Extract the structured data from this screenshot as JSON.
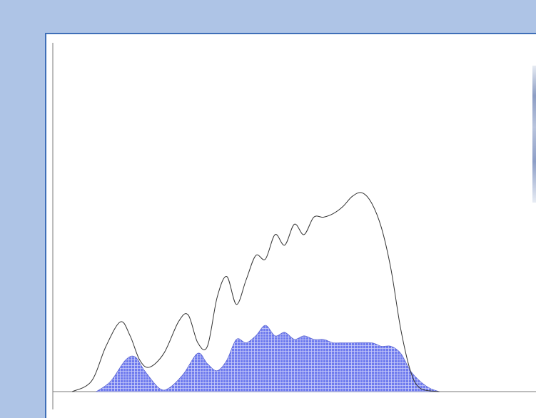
{
  "chart_data": {
    "type": "area",
    "title": "",
    "xlabel": "",
    "ylabel": "",
    "grid": false,
    "xlim": [
      0,
      100
    ],
    "ylim": [
      0,
      100
    ],
    "series": [
      {
        "style": "line",
        "color": "#333333",
        "points": [
          [
            4,
            0
          ],
          [
            8,
            3
          ],
          [
            11,
            13
          ],
          [
            14,
            20
          ],
          [
            16,
            16
          ],
          [
            18,
            9
          ],
          [
            20,
            7
          ],
          [
            23,
            11
          ],
          [
            26,
            20
          ],
          [
            28,
            22
          ],
          [
            30,
            14
          ],
          [
            32,
            13
          ],
          [
            34,
            27
          ],
          [
            36,
            33
          ],
          [
            38,
            25
          ],
          [
            40,
            32
          ],
          [
            42,
            39
          ],
          [
            44,
            38
          ],
          [
            46,
            45
          ],
          [
            48,
            42
          ],
          [
            50,
            48
          ],
          [
            52,
            45
          ],
          [
            54,
            50
          ],
          [
            56,
            50
          ],
          [
            58,
            51
          ],
          [
            60,
            53
          ],
          [
            62,
            56
          ],
          [
            64,
            57
          ],
          [
            66,
            54
          ],
          [
            68,
            47
          ],
          [
            70,
            35
          ],
          [
            72,
            18
          ],
          [
            74,
            6
          ],
          [
            76,
            1
          ],
          [
            80,
            0
          ]
        ]
      },
      {
        "style": "area",
        "fill": "#6e7aee",
        "pattern": "grid",
        "points": [
          [
            9,
            0
          ],
          [
            12,
            3
          ],
          [
            15,
            9
          ],
          [
            17,
            10
          ],
          [
            19,
            6
          ],
          [
            22,
            1
          ],
          [
            24,
            1
          ],
          [
            27,
            5
          ],
          [
            30,
            11
          ],
          [
            32,
            8
          ],
          [
            34,
            6
          ],
          [
            36,
            9
          ],
          [
            38,
            15
          ],
          [
            40,
            14
          ],
          [
            42,
            16
          ],
          [
            44,
            19
          ],
          [
            46,
            16
          ],
          [
            48,
            17
          ],
          [
            50,
            15
          ],
          [
            52,
            16
          ],
          [
            54,
            15
          ],
          [
            56,
            15
          ],
          [
            58,
            14
          ],
          [
            60,
            14
          ],
          [
            62,
            14
          ],
          [
            66,
            14
          ],
          [
            68,
            13
          ],
          [
            70,
            13
          ],
          [
            72,
            11
          ],
          [
            74,
            6
          ],
          [
            76,
            3
          ],
          [
            78,
            1
          ],
          [
            80,
            0
          ]
        ]
      }
    ]
  }
}
